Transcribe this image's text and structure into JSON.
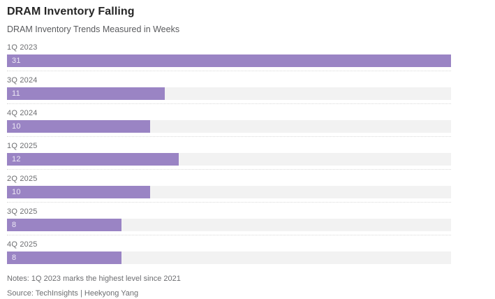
{
  "page": {
    "title": "DRAM Inventory Falling",
    "subtitle": "DRAM Inventory Trends Measured in Weeks",
    "notes": "Notes: 1Q 2023 marks the highest level since 2021",
    "source": "Source: TechInsights | Heekyong Yang"
  },
  "colors": {
    "bar": "#9a84c4",
    "track": "#f2f2f2",
    "title_text": "#262626",
    "muted_text": "#6d6e71",
    "separator": "#d9d9d9",
    "bar_value_text": "rgba(255,255,255,0.82)"
  },
  "chart_data": {
    "type": "bar",
    "orientation": "horizontal",
    "title": "DRAM Inventory Falling",
    "subtitle": "DRAM Inventory Trends Measured in Weeks",
    "categories": [
      "1Q 2023",
      "3Q 2024",
      "4Q 2024",
      "1Q 2025",
      "2Q 2025",
      "3Q 2025",
      "4Q 2025"
    ],
    "values": [
      31,
      11,
      10,
      12,
      10,
      8,
      8
    ],
    "unit": "weeks",
    "xlabel": "",
    "ylabel": "",
    "xlim": [
      0,
      31
    ],
    "grid": false,
    "legend": false,
    "value_labels_inside_bars": true,
    "notes": "Notes: 1Q 2023 marks the highest level since 2021",
    "source": "Source: TechInsights | Heekyong Yang"
  }
}
